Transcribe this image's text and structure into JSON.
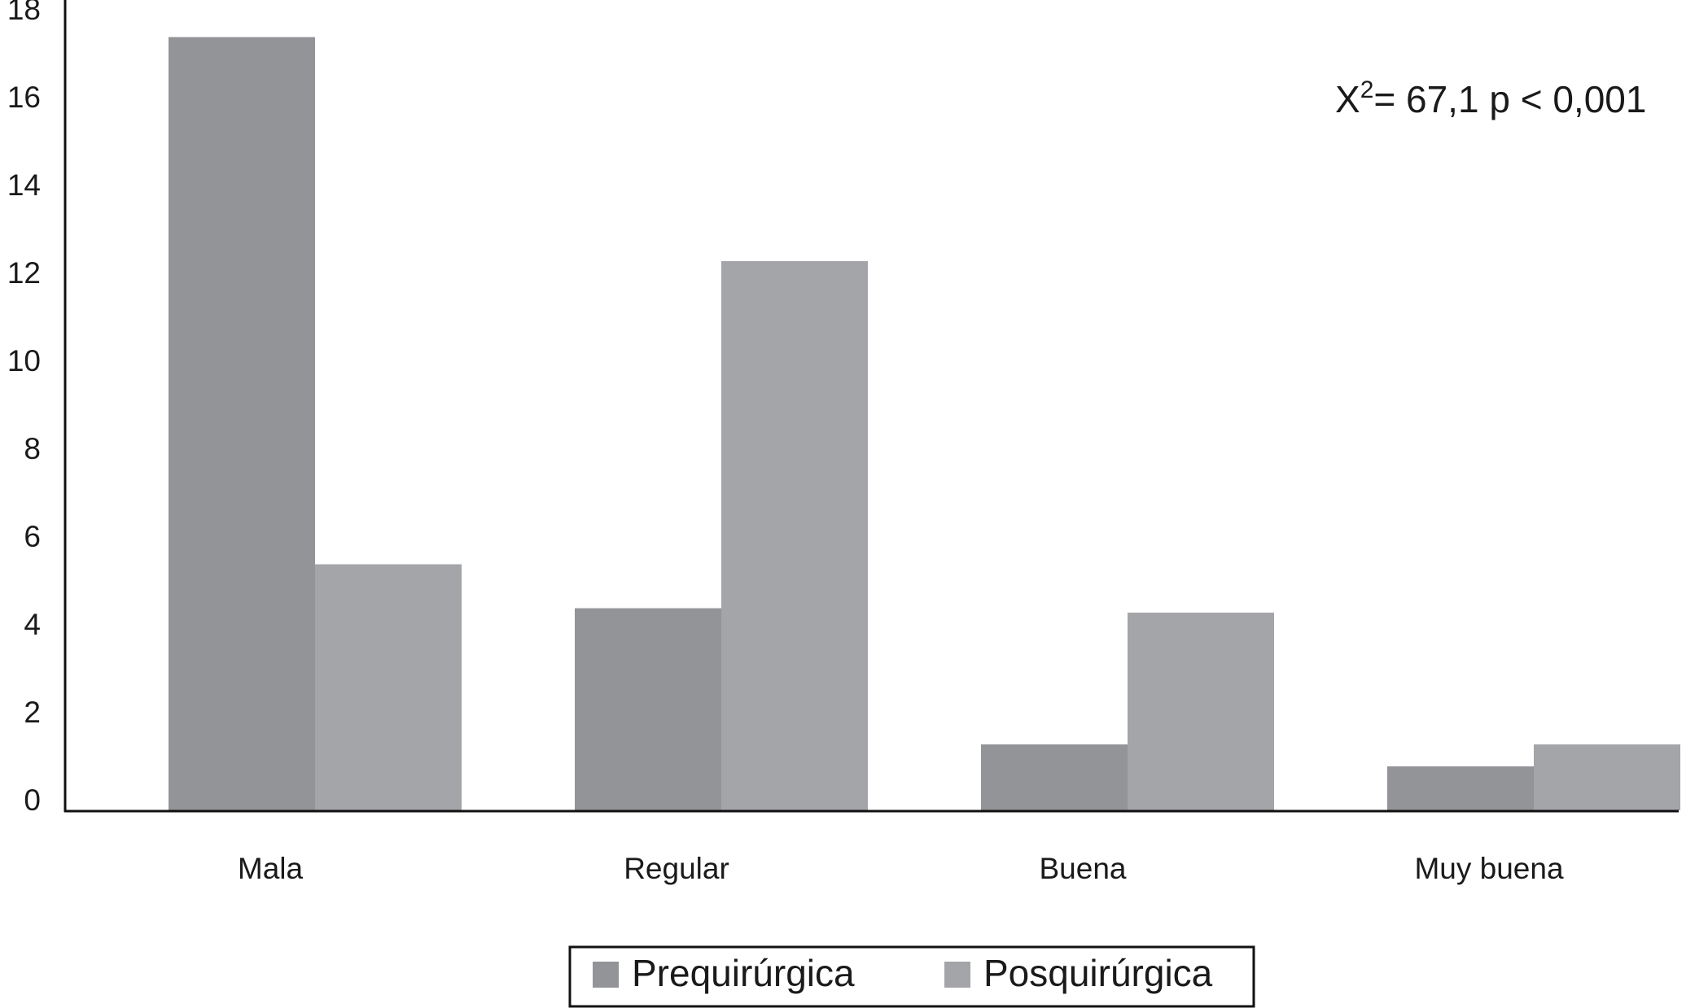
{
  "chart_data": {
    "type": "bar",
    "annotation": {
      "base": "X",
      "sup": "2",
      "text": "= 67,1  p < 0,001"
    },
    "categories": [
      "Mala",
      "Regular",
      "Buena",
      "Muy buena"
    ],
    "series": [
      {
        "name": "Prequirúrgica",
        "color": "#939498",
        "values": [
          17.6,
          4.6,
          1.5,
          1
        ]
      },
      {
        "name": "Posquirúrgica",
        "color": "#a4a5a9",
        "values": [
          5.6,
          12.5,
          4.5,
          1.5
        ]
      }
    ],
    "ylim": [
      0,
      18
    ],
    "yticks": [
      0,
      2,
      4,
      6,
      8,
      10,
      12,
      14,
      16,
      18
    ],
    "grid": false
  }
}
